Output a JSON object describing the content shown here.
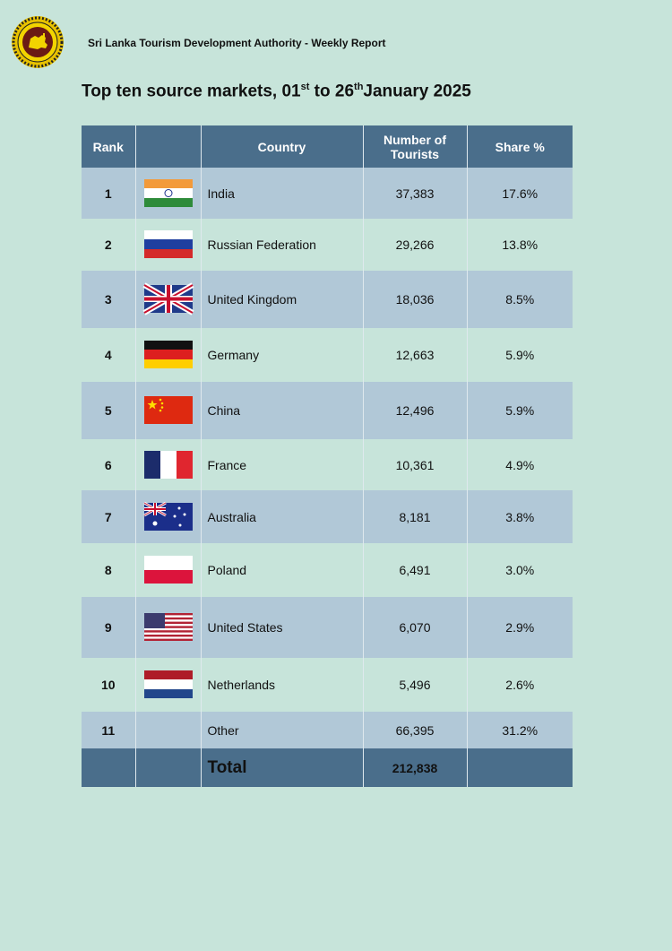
{
  "header": {
    "org": "Sri Lanka Tourism Development Authority - Weekly Report",
    "title_a": "Top ten source markets, 01",
    "title_sup1": "st",
    "title_b": " to 26",
    "title_sup2": "th",
    "title_c": "January 2025"
  },
  "table": {
    "columns": [
      "Rank",
      "",
      "Country",
      "Number of Tourists",
      "Share %"
    ],
    "rows": [
      {
        "rank": "1",
        "flag": "india-flag-icon",
        "country": "India",
        "tourists": "37,383",
        "share": "17.6%"
      },
      {
        "rank": "2",
        "flag": "russia-flag-icon",
        "country": "Russian Federation",
        "tourists": "29,266",
        "share": "13.8%"
      },
      {
        "rank": "3",
        "flag": "uk-flag-icon",
        "country": "United Kingdom",
        "tourists": "18,036",
        "share": "8.5%"
      },
      {
        "rank": "4",
        "flag": "germany-flag-icon",
        "country": "Germany",
        "tourists": "12,663",
        "share": "5.9%"
      },
      {
        "rank": "5",
        "flag": "china-flag-icon",
        "country": "China",
        "tourists": "12,496",
        "share": "5.9%"
      },
      {
        "rank": "6",
        "flag": "france-flag-icon",
        "country": "France",
        "tourists": "10,361",
        "share": "4.9%"
      },
      {
        "rank": "7",
        "flag": "australia-flag-icon",
        "country": "Australia",
        "tourists": "8,181",
        "share": "3.8%"
      },
      {
        "rank": "8",
        "flag": "poland-flag-icon",
        "country": "Poland",
        "tourists": "6,491",
        "share": "3.0%"
      },
      {
        "rank": "9",
        "flag": "usa-flag-icon",
        "country": "United States",
        "tourists": "6,070",
        "share": "2.9%"
      },
      {
        "rank": "10",
        "flag": "netherlands-flag-icon",
        "country": "Netherlands",
        "tourists": "5,496",
        "share": "2.6%"
      },
      {
        "rank": "11",
        "flag": "",
        "country": "Other",
        "tourists": "66,395",
        "share": "31.2%"
      }
    ],
    "total": {
      "label": "Total",
      "tourists": "212,838"
    }
  },
  "colors": {
    "background": "#c7e4da",
    "header_row": "#4a6e8b",
    "odd_row": "#b1c8d7",
    "even_row": "#c7e4da"
  }
}
